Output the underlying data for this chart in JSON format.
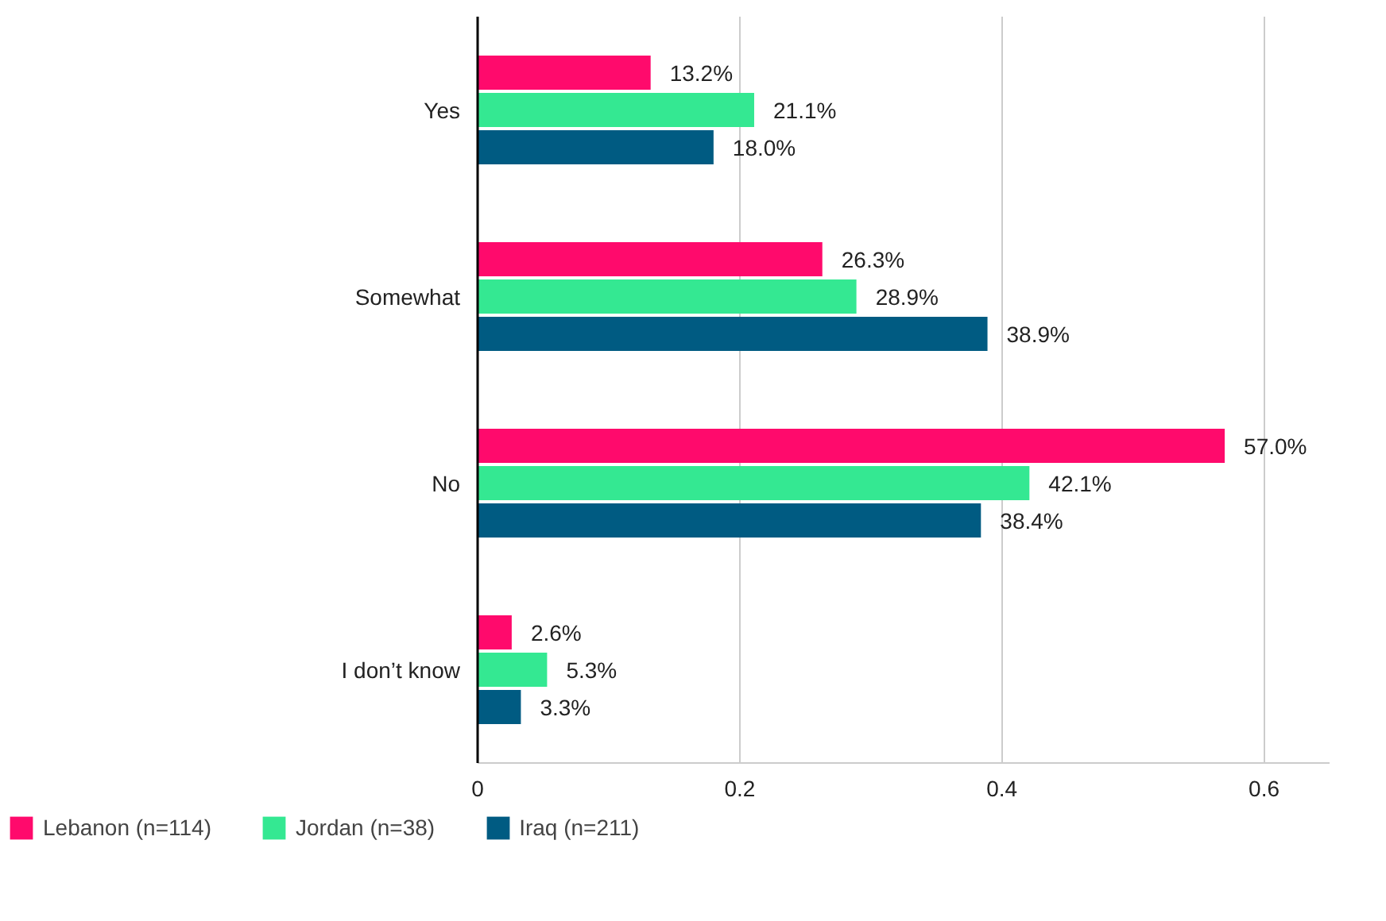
{
  "chart_data": {
    "type": "bar",
    "orientation": "horizontal",
    "categories": [
      "Yes",
      "Somewhat",
      "No",
      "I don’t know"
    ],
    "series": [
      {
        "name": "Lebanon (n=114)",
        "color": "#ff0a6c",
        "values": [
          0.132,
          0.263,
          0.57,
          0.026
        ],
        "value_labels": [
          "13.2%",
          "26.3%",
          "57.0%",
          "2.6%"
        ]
      },
      {
        "name": "Jordan (n=38)",
        "color": "#34e892",
        "values": [
          0.211,
          0.289,
          0.421,
          0.053
        ],
        "value_labels": [
          "21.1%",
          "28.9%",
          "42.1%",
          "5.3%"
        ]
      },
      {
        "name": "Iraq (n=211)",
        "color": "#005b82",
        "values": [
          0.18,
          0.389,
          0.384,
          0.033
        ],
        "value_labels": [
          "18.0%",
          "38.9%",
          "38.4%",
          "3.3%"
        ]
      }
    ],
    "xlim": [
      0,
      0.65
    ],
    "xticks": [
      0,
      0.2,
      0.4,
      0.6
    ],
    "grid": "x",
    "legend": "bottom"
  }
}
